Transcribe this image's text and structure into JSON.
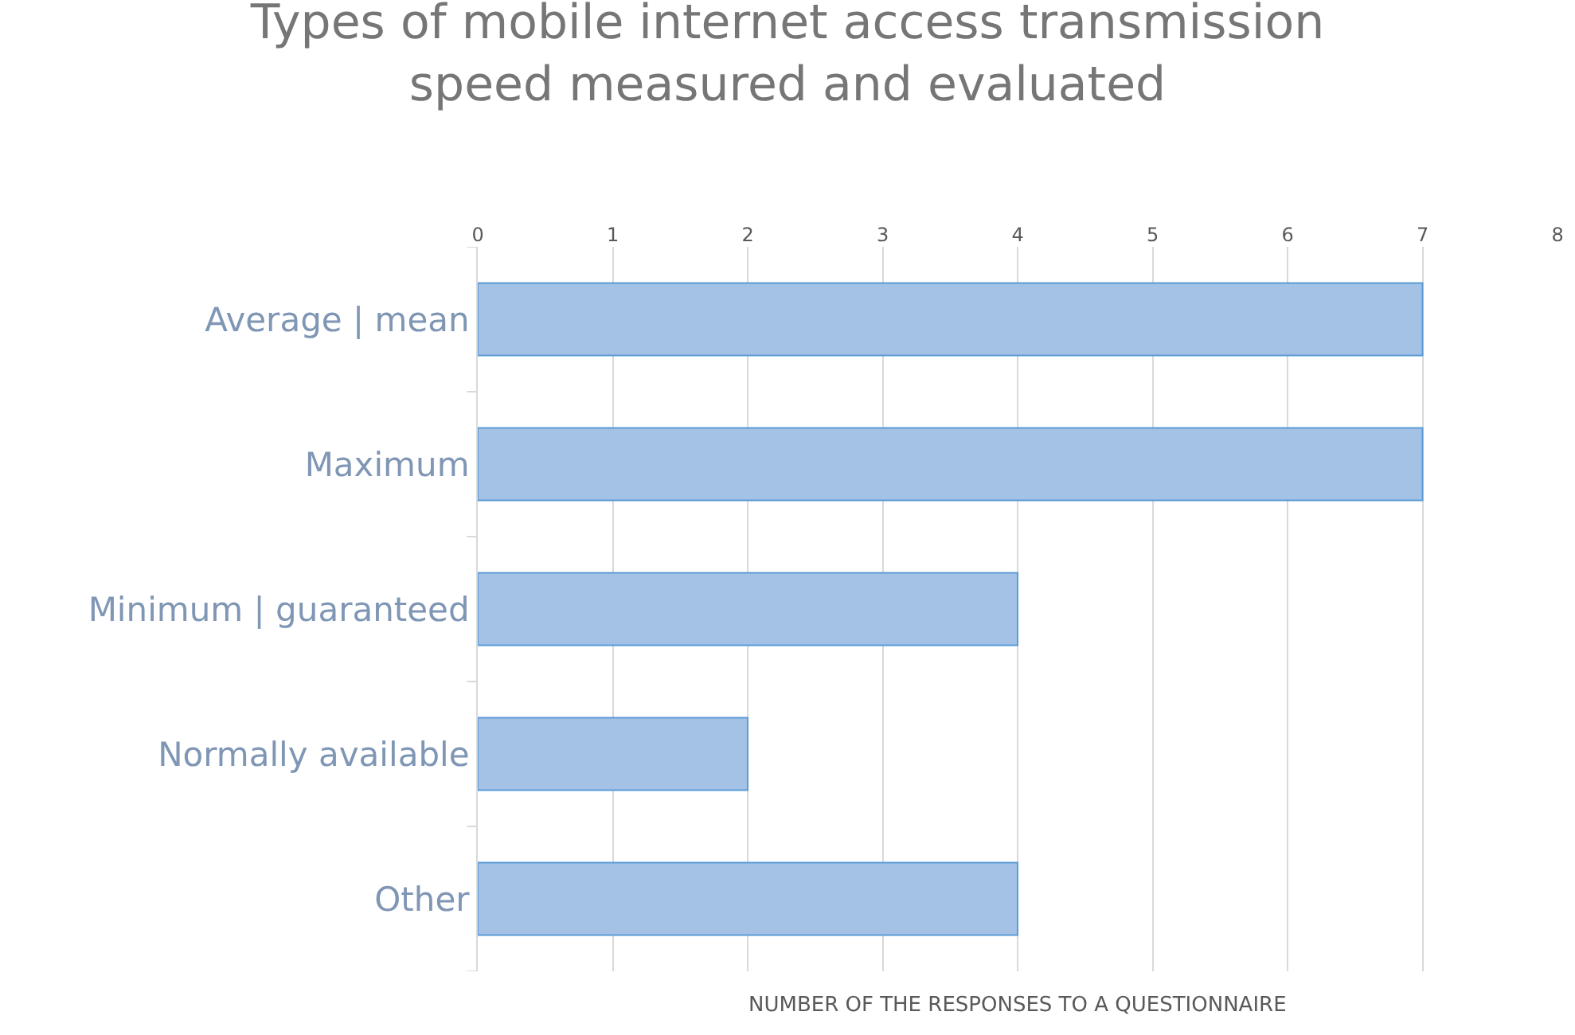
{
  "chart_data": {
    "type": "bar",
    "orientation": "horizontal",
    "title": "Types of mobile internet access transmission speed measured and evaluated",
    "xlabel": "NUMBER OF THE RESPONSES TO A QUESTIONNAIRE",
    "categories": [
      "Average | mean",
      "Maximum",
      "Minimum | guaranteed",
      "Normally available",
      "Other"
    ],
    "values": [
      7,
      7,
      4,
      2,
      4
    ],
    "color": "#a4c2e6",
    "xlim": [
      0,
      8
    ],
    "xticks": [
      0,
      1,
      2,
      3,
      4,
      5,
      6,
      7,
      8
    ],
    "grid": "x",
    "legend": false
  }
}
